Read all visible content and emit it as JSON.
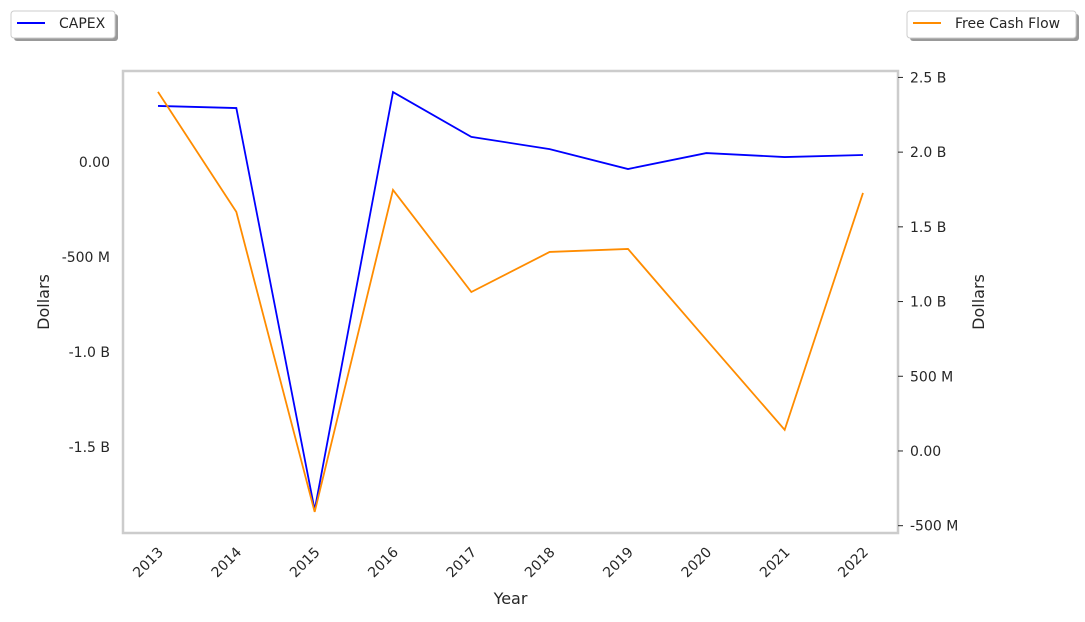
{
  "chart_data": {
    "type": "line",
    "title": "",
    "xlabel": "Year",
    "ylabel_left": "Dollars",
    "ylabel_right": "Dollars",
    "categories": [
      "2013",
      "2014",
      "2015",
      "2016",
      "2017",
      "2018",
      "2019",
      "2020",
      "2021",
      "2022"
    ],
    "series": [
      {
        "name": "CAPEX",
        "axis": "left",
        "color": "#0000ff",
        "values": [
          295,
          284,
          -1832,
          368,
          132,
          68,
          -37,
          47,
          26,
          37
        ]
      },
      {
        "name": "Free Cash Flow",
        "axis": "right",
        "color": "#ff8c00",
        "values": [
          2403,
          1600,
          -408,
          1747,
          1064,
          1332,
          1352,
          745,
          141,
          1727
        ]
      }
    ],
    "units": "millions of dollars",
    "ylim_left": [
      -1953,
      479
    ],
    "ylim_right": [
      -549,
      2543
    ],
    "yticks_left": [
      {
        "v": 0,
        "label": "0.00"
      },
      {
        "v": -500,
        "label": "-500 M"
      },
      {
        "v": -1000,
        "label": "-1.0 B"
      },
      {
        "v": -1500,
        "label": "-1.5 B"
      }
    ],
    "yticks_right": [
      {
        "v": 2500,
        "label": "2.5 B"
      },
      {
        "v": 2000,
        "label": "2.0 B"
      },
      {
        "v": 1500,
        "label": "1.5 B"
      },
      {
        "v": 1000,
        "label": "1.0 B"
      },
      {
        "v": 500,
        "label": "500 M"
      },
      {
        "v": 0,
        "label": "0.00"
      },
      {
        "v": -500,
        "label": "-500 M"
      }
    ],
    "legend": [
      {
        "label": "CAPEX",
        "placement": "top-left"
      },
      {
        "label": "Free Cash Flow",
        "placement": "top-right"
      }
    ],
    "grid": false
  }
}
